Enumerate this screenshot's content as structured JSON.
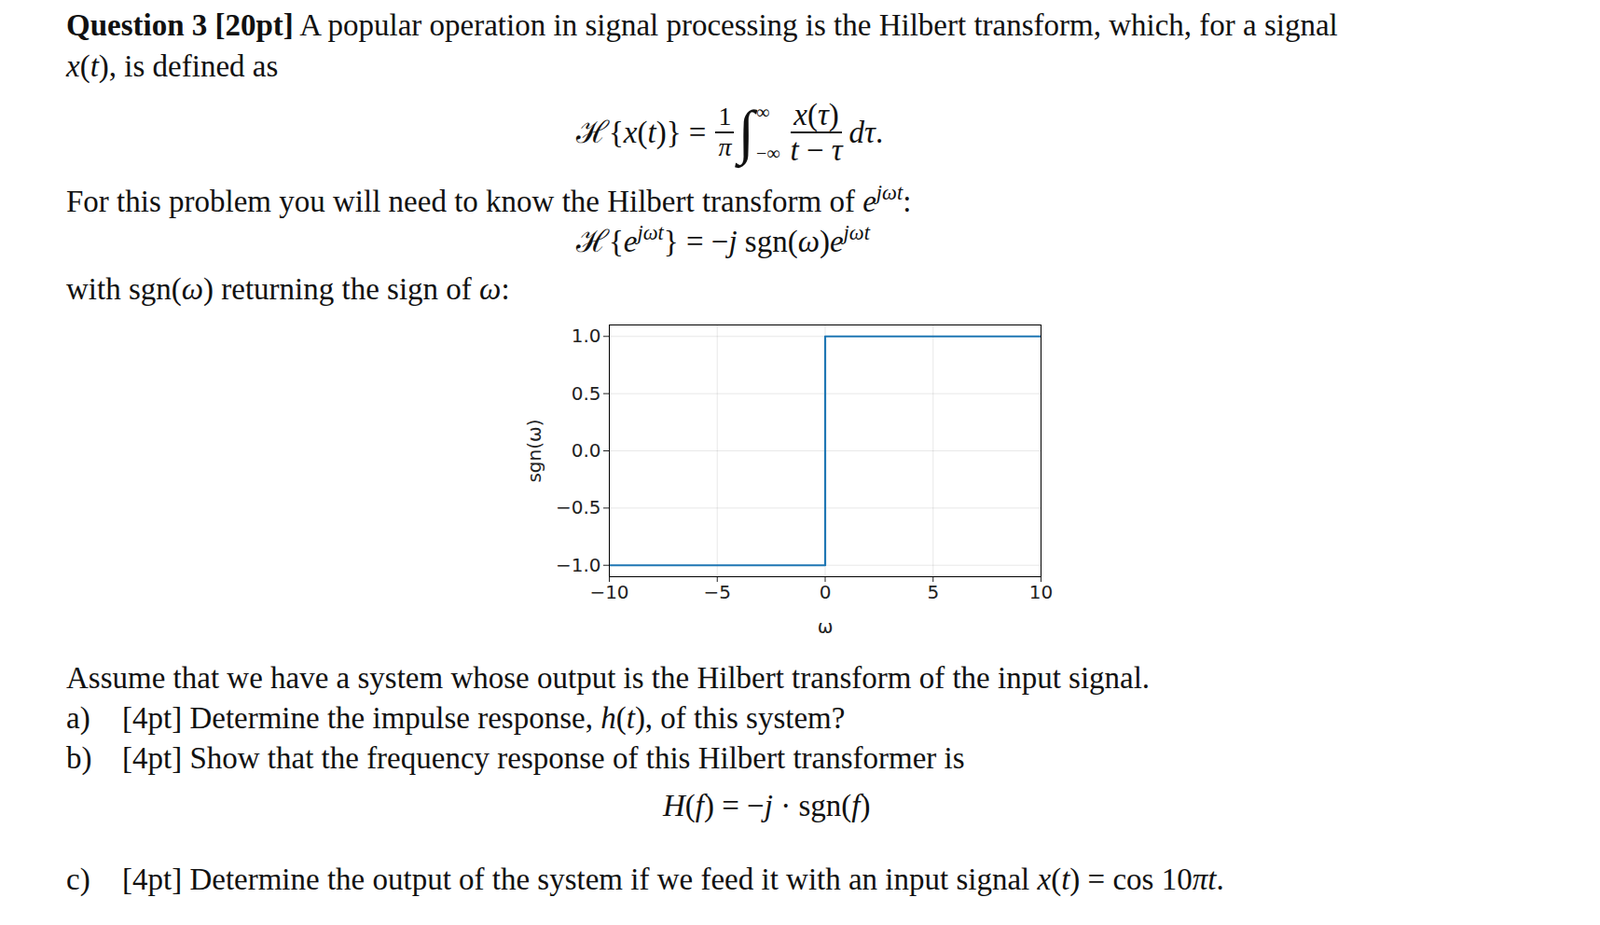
{
  "document": {
    "question": [
      [
        {
          "b": "Question 3 [20pt]"
        },
        " A popular operation in signal processing is the Hilbert transform, which, for a signal"
      ],
      [
        {
          "i": "x"
        },
        "(",
        {
          "i": "t"
        },
        "), is defined as"
      ]
    ],
    "definition": {
      "lhs": [
        "ℋ{",
        {
          "i": "x"
        },
        "(",
        {
          "i": "t"
        },
        ")} ="
      ],
      "frac": [
        "1",
        "π"
      ],
      "integral": "∫",
      "upper": "∞",
      "lower": "−∞",
      "num": [
        {
          "i": "x"
        },
        "(",
        {
          "i": "τ"
        },
        ")"
      ],
      "den": [
        {
          "i": "t"
        },
        " − ",
        {
          "i": "τ"
        }
      ],
      "tail": [
        {
          "i": "d"
        },
        {
          "i": "τ"
        },
        "."
      ]
    },
    "intro": [
      "For this problem you will need to know the Hilbert transform of ",
      {
        "i": "e"
      },
      {
        "sup": "jωt"
      },
      ":"
    ],
    "transform": [
      "ℋ{",
      {
        "i": "e"
      },
      {
        "sup": "jωt"
      },
      "} = −",
      {
        "i": "j"
      },
      " sgn(",
      {
        "i": "ω"
      },
      ")",
      {
        "i": "e"
      },
      {
        "sup": "jωt"
      }
    ],
    "sgn_line": [
      "with sgn(",
      {
        "i": "ω"
      },
      ") returning the sign of ",
      {
        "i": "ω"
      },
      ":"
    ],
    "assume": [
      "Assume that we have a system whose output is the Hilbert transform of the input signal."
    ],
    "items": [
      {
        "label": "a)",
        "text": [
          "[4pt] Determine the impulse response, ",
          {
            "i": "h"
          },
          "(",
          {
            "i": "t"
          },
          "), of this system?"
        ]
      },
      {
        "label": "b)",
        "text": [
          "[4pt] Show that the frequency response of this Hilbert transformer is"
        ]
      },
      {
        "label": "c)",
        "text": [
          "[4pt] Determine the output of the system if we feed it with an input signal ",
          {
            "i": "x"
          },
          "(",
          {
            "i": "t"
          },
          ") = cos 10",
          {
            "i": "π"
          },
          {
            "i": "t"
          },
          "."
        ]
      }
    ],
    "response": [
      {
        "i": "H"
      },
      "(",
      {
        "i": "f"
      },
      ") = −",
      {
        "i": "j"
      },
      " · sgn(",
      {
        "i": "f"
      },
      ")"
    ]
  },
  "chart_data": {
    "type": "line",
    "x_label": "ω",
    "y_label": "sgn(ω)",
    "x": [
      -10,
      0,
      0,
      10
    ],
    "values": [
      -1,
      -1,
      1,
      1
    ],
    "color": "#1f77b4",
    "xlim": [
      -10,
      10
    ],
    "xticks": [
      {
        "value": -10,
        "label": "−10"
      },
      {
        "value": -5,
        "label": "−5"
      },
      0,
      5,
      10
    ],
    "ylim": [
      -1.1,
      1.1
    ],
    "yticks": [
      {
        "value": -1,
        "label": "−1.0"
      },
      {
        "value": -0.5,
        "label": "−0.5"
      },
      {
        "value": 0,
        "label": "0.0"
      },
      {
        "value": 0.5,
        "label": "0.5"
      },
      {
        "value": 1,
        "label": "1.0"
      }
    ],
    "grid": true
  }
}
